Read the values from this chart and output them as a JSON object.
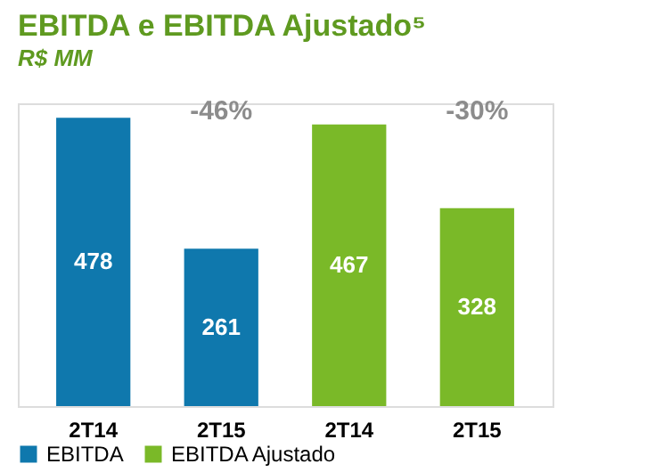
{
  "chart_data": {
    "type": "bar",
    "title": "EBITDA e EBITDA Ajustado⁵",
    "subtitle": "R$ MM",
    "categories": [
      "2T14",
      "2T15",
      "2T14",
      "2T15"
    ],
    "series": [
      {
        "name": "EBITDA",
        "color": "#0f78ad",
        "values": [
          478,
          261,
          null,
          null
        ]
      },
      {
        "name": "EBITDA Ajustado",
        "color": "#7ab928",
        "values": [
          null,
          null,
          467,
          328
        ]
      }
    ],
    "data_labels": true,
    "legend": "bottom",
    "grid": false,
    "annotations": [
      "-46%",
      "-30%"
    ]
  }
}
